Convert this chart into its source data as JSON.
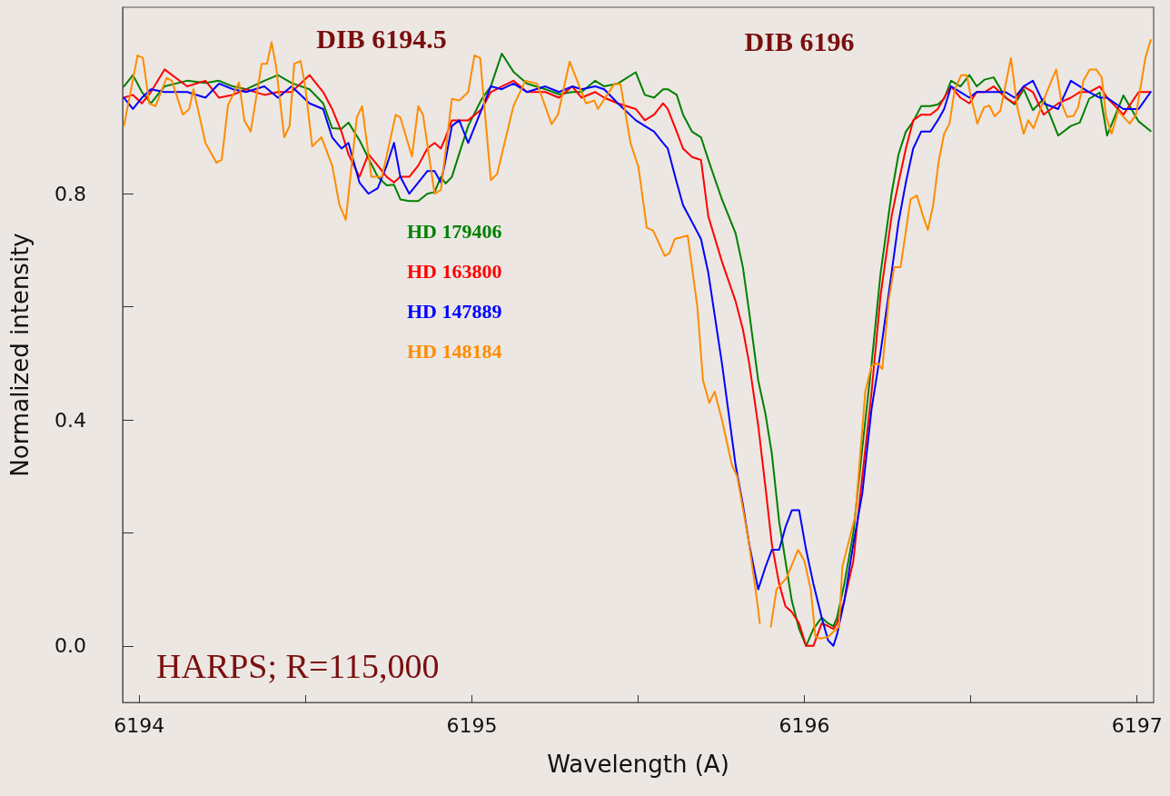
{
  "chart_data": {
    "type": "line",
    "xlabel": "Wavelength (A)",
    "ylabel": "Normalized intensity",
    "xlim": [
      6193.95,
      6197.05
    ],
    "ylim": [
      -0.1,
      1.13
    ],
    "xticks": [
      6194,
      {
        "value": 6194.5,
        "label": null
      },
      6195,
      {
        "value": 6195.5,
        "label": null
      },
      6196,
      {
        "value": 6196.5,
        "label": null
      },
      6197
    ],
    "yticks": [
      {
        "value": 0,
        "label": "0.0"
      },
      {
        "value": 0.2,
        "label": null
      },
      {
        "value": 0.4,
        "label": "0.4"
      },
      {
        "value": 0.6,
        "label": null
      },
      {
        "value": 0.8,
        "label": "0.8"
      }
    ],
    "grid": false,
    "legend": "left",
    "marker": "none",
    "line_style": "solid",
    "annotations": [
      "DIB 6194.5",
      "DIB 6196",
      "HARPS; R=115,000"
    ],
    "x": [
      6193.954,
      6193.981,
      6194.008,
      6194.035,
      6194.076,
      6194.144,
      6194.199,
      6194.24,
      6194.281,
      6194.322,
      6194.376,
      6194.417,
      6194.458,
      6194.512,
      6194.553,
      6194.58,
      6194.608,
      6194.629,
      6194.662,
      6194.689,
      6194.717,
      6194.744,
      6194.766,
      6194.785,
      6194.812,
      6194.839,
      6194.866,
      6194.888,
      6194.907,
      6194.921,
      6194.94,
      6194.962,
      6194.989,
      6195.03,
      6195.057,
      6195.09,
      6195.125,
      6195.166,
      6195.221,
      6195.262,
      6195.302,
      6195.33,
      6195.371,
      6195.398,
      6195.439,
      6195.493,
      6195.52,
      6195.548,
      6195.575,
      6195.589,
      6195.616,
      6195.635,
      6195.662,
      6195.689,
      6195.711,
      6195.752,
      6195.793,
      6195.815,
      6195.834,
      6195.861,
      6195.883,
      6195.902,
      6195.924,
      6195.943,
      6195.962,
      6195.984,
      6196.005,
      6196.027,
      6196.052,
      6196.071,
      6196.087,
      6196.098,
      6196.12,
      6196.147,
      6196.174,
      6196.202,
      6196.229,
      6196.262,
      6196.283,
      6196.305,
      6196.327,
      6196.351,
      6196.379,
      6196.401,
      6196.42,
      6196.441,
      6196.469,
      6196.496,
      6196.518,
      6196.542,
      6196.569,
      6196.605,
      6196.632,
      6196.659,
      6196.687,
      6196.719,
      6196.763,
      6196.801,
      6196.828,
      6196.856,
      6196.888,
      6196.91,
      6196.959,
      6197.005,
      6197.041
    ],
    "series": [
      {
        "name": "HD 179406",
        "color": "#008000",
        "values": [
          0.99,
          1.01,
          0.98,
          0.96,
          0.99,
          1.0,
          0.996,
          1.0,
          0.99,
          0.985,
          1.0,
          1.01,
          0.996,
          0.985,
          0.96,
          0.916,
          0.915,
          0.926,
          0.895,
          0.863,
          0.83,
          0.815,
          0.816,
          0.79,
          0.787,
          0.787,
          0.8,
          0.803,
          0.83,
          0.818,
          0.83,
          0.871,
          0.92,
          0.968,
          0.99,
          1.048,
          1.016,
          0.995,
          0.985,
          0.976,
          0.98,
          0.98,
          1.0,
          0.99,
          0.995,
          1.015,
          0.975,
          0.97,
          0.985,
          0.985,
          0.975,
          0.94,
          0.91,
          0.9,
          0.86,
          0.79,
          0.73,
          0.67,
          0.59,
          0.47,
          0.41,
          0.34,
          0.22,
          0.15,
          0.08,
          0.03,
          0.0,
          0.03,
          0.05,
          0.04,
          0.035,
          0.05,
          0.11,
          0.2,
          0.35,
          0.5,
          0.66,
          0.8,
          0.87,
          0.91,
          0.928,
          0.955,
          0.955,
          0.958,
          0.968,
          1.0,
          0.99,
          1.01,
          0.99,
          1.002,
          1.006,
          0.97,
          0.958,
          0.985,
          0.948,
          0.968,
          0.903,
          0.92,
          0.926,
          0.968,
          0.979,
          0.903,
          0.974,
          0.928,
          0.911
        ]
      },
      {
        "name": "HD 163800",
        "color": "#ff0000",
        "values": [
          0.97,
          0.975,
          0.96,
          0.98,
          1.02,
          0.99,
          1.0,
          0.97,
          0.975,
          0.985,
          0.975,
          0.98,
          0.98,
          1.01,
          0.98,
          0.95,
          0.91,
          0.87,
          0.83,
          0.87,
          0.85,
          0.83,
          0.82,
          0.83,
          0.83,
          0.85,
          0.88,
          0.89,
          0.88,
          0.9,
          0.93,
          0.93,
          0.93,
          0.95,
          0.98,
          0.99,
          1.0,
          0.98,
          0.98,
          0.97,
          0.99,
          0.97,
          0.98,
          0.97,
          0.96,
          0.95,
          0.93,
          0.94,
          0.96,
          0.95,
          0.91,
          0.88,
          0.865,
          0.86,
          0.76,
          0.68,
          0.61,
          0.56,
          0.5,
          0.39,
          0.28,
          0.18,
          0.11,
          0.07,
          0.06,
          0.04,
          0.0,
          0.0,
          0.04,
          0.035,
          0.03,
          0.04,
          0.08,
          0.15,
          0.3,
          0.45,
          0.62,
          0.76,
          0.82,
          0.88,
          0.93,
          0.94,
          0.94,
          0.95,
          0.97,
          0.99,
          0.97,
          0.96,
          0.98,
          0.98,
          0.99,
          0.97,
          0.96,
          0.99,
          0.98,
          0.94,
          0.96,
          0.97,
          0.98,
          0.98,
          0.99,
          0.97,
          0.94,
          0.98,
          0.98
        ]
      },
      {
        "name": "HD 147889",
        "color": "#0000ff",
        "values": [
          0.97,
          0.95,
          0.97,
          0.985,
          0.98,
          0.98,
          0.97,
          0.995,
          0.985,
          0.98,
          0.99,
          0.97,
          0.99,
          0.96,
          0.95,
          0.9,
          0.88,
          0.89,
          0.82,
          0.8,
          0.81,
          0.85,
          0.89,
          0.83,
          0.8,
          0.82,
          0.84,
          0.84,
          0.82,
          0.86,
          0.92,
          0.93,
          0.89,
          0.95,
          0.99,
          0.985,
          0.995,
          0.98,
          0.99,
          0.98,
          0.99,
          0.985,
          0.99,
          0.985,
          0.96,
          0.93,
          0.92,
          0.91,
          0.89,
          0.88,
          0.82,
          0.78,
          0.75,
          0.72,
          0.66,
          0.5,
          0.32,
          0.25,
          0.18,
          0.1,
          0.14,
          0.17,
          0.17,
          0.21,
          0.24,
          0.24,
          0.17,
          0.11,
          0.05,
          0.01,
          0.0,
          0.02,
          0.08,
          0.18,
          0.27,
          0.42,
          0.52,
          0.66,
          0.75,
          0.82,
          0.88,
          0.91,
          0.91,
          0.93,
          0.95,
          0.99,
          0.98,
          0.97,
          0.98,
          0.98,
          0.98,
          0.98,
          0.97,
          0.99,
          1.0,
          0.96,
          0.95,
          1.0,
          0.99,
          0.98,
          0.97,
          0.97,
          0.95,
          0.95,
          0.98
        ]
      },
      {
        "name": "HD 148184",
        "color": "#ff8c00",
        "x": [
          6193.954,
          6193.995,
          6194.011,
          6194.03,
          6194.049,
          6194.082,
          6194.098,
          6194.131,
          6194.15,
          6194.163,
          6194.199,
          6194.232,
          6194.248,
          6194.267,
          6194.3,
          6194.316,
          6194.335,
          6194.368,
          6194.384,
          6194.398,
          6194.411,
          6194.436,
          6194.452,
          6194.466,
          6194.485,
          6194.499,
          6194.52,
          6194.548,
          6194.58,
          6194.602,
          6194.621,
          6194.654,
          6194.67,
          6194.698,
          6194.73,
          6194.771,
          6194.785,
          6194.82,
          6194.839,
          6194.853,
          6194.888,
          6194.907,
          6194.94,
          6194.962,
          6194.989,
          6195.008,
          6195.025,
          6195.057,
          6195.076,
          6195.125,
          6195.161,
          6195.196,
          6195.24,
          6195.259,
          6195.294,
          6195.343,
          6195.368,
          6195.379,
          6195.428,
          6195.447,
          6195.477,
          6195.501,
          6195.526,
          6195.545,
          6195.58,
          6195.594,
          6195.61,
          6195.649,
          6195.678,
          6195.695,
          6195.714,
          6195.73,
          6195.752,
          6195.782,
          6195.798,
          6195.831,
          6195.853,
          6195.866,
          6195.883,
          6195.899,
          6195.916,
          6195.946,
          6195.981,
          6196.0,
          6196.019,
          6196.033,
          6196.049,
          6196.071,
          6196.104,
          6196.114,
          6196.153,
          6196.183,
          6196.202,
          6196.221,
          6196.234,
          6196.253,
          6196.27,
          6196.289,
          6196.319,
          6196.338,
          6196.357,
          6196.371,
          6196.387,
          6196.403,
          6196.42,
          6196.436,
          6196.452,
          6196.471,
          6196.488,
          6196.501,
          6196.52,
          6196.54,
          6196.556,
          6196.572,
          6196.589,
          6196.621,
          6196.64,
          6196.659,
          6196.673,
          6196.689,
          6196.728,
          6196.757,
          6196.774,
          6196.79,
          6196.809,
          6196.823,
          6196.839,
          6196.858,
          6196.877,
          6196.894,
          6196.907,
          6196.924,
          6196.943,
          6196.978,
          6196.997,
          6197.025,
          6197.041
        ],
        "values": [
          0.92,
          1.045,
          1.04,
          0.96,
          0.955,
          1.005,
          1.0,
          0.94,
          0.95,
          0.985,
          0.89,
          0.855,
          0.86,
          0.957,
          0.997,
          0.93,
          0.91,
          1.03,
          1.03,
          1.068,
          1.027,
          0.9,
          0.92,
          1.03,
          1.035,
          0.99,
          0.884,
          0.9,
          0.85,
          0.78,
          0.754,
          0.935,
          0.955,
          0.83,
          0.83,
          0.94,
          0.935,
          0.866,
          0.955,
          0.94,
          0.8,
          0.807,
          0.968,
          0.965,
          0.98,
          1.045,
          1.04,
          0.824,
          0.835,
          0.955,
          1.0,
          0.995,
          0.923,
          0.94,
          1.034,
          0.96,
          0.965,
          0.95,
          0.994,
          0.994,
          0.89,
          0.847,
          0.74,
          0.735,
          0.69,
          0.695,
          0.72,
          0.726,
          0.6,
          0.47,
          0.43,
          0.45,
          0.4,
          0.32,
          0.3,
          0.19,
          0.1,
          0.04,
          null,
          0.034,
          0.1,
          0.12,
          0.17,
          0.15,
          0.1,
          0.016,
          0.013,
          0.016,
          0.034,
          0.14,
          0.23,
          0.45,
          0.496,
          0.5,
          0.49,
          0.61,
          0.67,
          0.67,
          0.79,
          0.797,
          0.76,
          0.736,
          0.78,
          0.855,
          0.906,
          0.924,
          0.984,
          1.01,
          1.01,
          0.97,
          0.924,
          0.953,
          0.956,
          0.937,
          0.947,
          1.04,
          0.953,
          0.906,
          0.93,
          0.916,
          0.979,
          1.02,
          0.958,
          0.936,
          0.938,
          0.953,
          1.0,
          1.02,
          1.02,
          1.006,
          0.936,
          0.906,
          0.947,
          0.924,
          0.94,
          1.04,
          1.072
        ]
      }
    ]
  }
}
